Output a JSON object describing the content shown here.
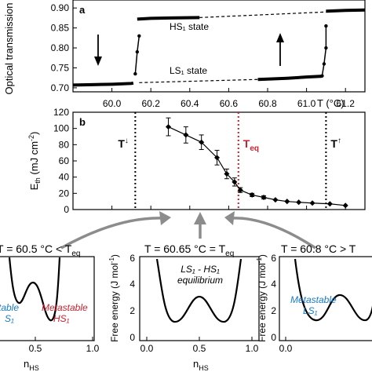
{
  "colors": {
    "black": "#000000",
    "red": "#cc1f2f",
    "blue": "#1a7bc4",
    "arrow": "#8c8c8c"
  },
  "chart_data": [
    {
      "panel": "a",
      "type": "line",
      "ylabel": "Optical transmission",
      "xlabel": "T (°C)",
      "xlim": [
        59.8,
        61.3
      ],
      "ylim": [
        0.69,
        0.92
      ],
      "x_ticks": [
        "60.0",
        "60.2",
        "60.4",
        "60.6",
        "60.8",
        "61.0",
        "61.2"
      ],
      "y_ticks": [
        "0.70",
        "0.75",
        "0.80",
        "0.85",
        "0.90"
      ],
      "annotations": [
        "HS₁ state",
        "LS₁ state"
      ],
      "series": [
        {
          "x": [
            59.8,
            59.9,
            60.0,
            60.1,
            60.11
          ],
          "y": [
            0.707,
            0.708,
            0.709,
            0.711,
            0.712
          ]
        },
        {
          "x": [
            60.12,
            60.13,
            60.14
          ],
          "y": [
            0.735,
            0.79,
            0.83
          ]
        },
        {
          "x": [
            60.13,
            60.2,
            60.3,
            60.45
          ],
          "y": [
            0.872,
            0.874,
            0.875,
            0.876
          ]
        },
        {
          "x": [
            60.75,
            60.9,
            61.0,
            61.08
          ],
          "y": [
            0.721,
            0.724,
            0.727,
            0.729
          ]
        },
        {
          "x": [
            61.08,
            61.09,
            61.1,
            61.1
          ],
          "y": [
            0.73,
            0.76,
            0.8,
            0.855
          ]
        },
        {
          "x": [
            61.1,
            61.15,
            61.2,
            61.3
          ],
          "y": [
            0.892,
            0.893,
            0.894,
            0.895
          ]
        }
      ],
      "dashed": [
        {
          "x": [
            60.45,
            61.1
          ],
          "y": [
            0.876,
            0.89
          ]
        },
        {
          "x": [
            60.14,
            60.75
          ],
          "y": [
            0.713,
            0.721
          ]
        }
      ]
    },
    {
      "panel": "b",
      "type": "scatter",
      "ylabel": "E",
      "ylabel_sub": "th",
      "ylabel_unit": "(mJ cm",
      "ylabel_sup": "-2",
      "ylabel_close": ")",
      "xlim": [
        59.8,
        61.3
      ],
      "ylim": [
        0,
        120
      ],
      "y_ticks": [
        "0",
        "20",
        "40",
        "60",
        "80",
        "100",
        "120"
      ],
      "x": [
        60.29,
        60.38,
        60.46,
        60.54,
        60.59,
        60.63,
        60.66,
        60.72,
        60.78,
        60.84,
        60.9,
        60.96,
        61.03,
        61.12,
        61.2
      ],
      "y": [
        102,
        92,
        83,
        64,
        44,
        34,
        24,
        18,
        15,
        12,
        10,
        9,
        8,
        7,
        5
      ],
      "errors": [
        11,
        10,
        9,
        9,
        6,
        5,
        3,
        2,
        2,
        1,
        1,
        1,
        1,
        1,
        1
      ],
      "vlines": [
        {
          "x": 60.12,
          "label": "T",
          "sup": "↓",
          "color": "black"
        },
        {
          "x": 60.65,
          "label": "T",
          "sub": "eq",
          "color": "red"
        },
        {
          "x": 61.1,
          "label": "T",
          "sup": "↑",
          "color": "black"
        }
      ]
    },
    {
      "panel": "c1",
      "type": "line",
      "title": "T = 60.5 °C < T",
      "title_sub": "eq",
      "xlabel": "n",
      "xlabel_sub": "HS",
      "x_ticks": [
        "0.5",
        "1.0"
      ],
      "labels": [
        {
          "text": "Metastable",
          "color": "red"
        },
        {
          "text": "HS₁",
          "color": "red"
        },
        {
          "text": "table",
          "color": "blue"
        },
        {
          "text": "S₁",
          "color": "blue"
        }
      ]
    },
    {
      "panel": "c2",
      "type": "line",
      "title": "T = 60.65 °C = T",
      "title_sub": "eq",
      "ylabel": "Free energy (J mol",
      "ylabel_sup": "-1",
      "ylabel_close": ")",
      "xlabel": "n",
      "xlabel_sub": "HS",
      "y_ticks": [
        "0",
        "2",
        "4",
        "6"
      ],
      "x_ticks": [
        "0.0",
        "0.5",
        "1.0"
      ],
      "inset_line1": "LS₁ - HS₁",
      "inset_line2": "equilibrium"
    },
    {
      "panel": "c3",
      "type": "line",
      "title": "T = 60.8 °C > T",
      "ylabel": "Free energy (J mol",
      "ylabel_sup": "-1",
      "ylabel_close": ")",
      "y_ticks": [
        "0",
        "2",
        "4",
        "6"
      ],
      "x_ticks": [
        "0.0"
      ],
      "labels": [
        {
          "text": "Metastable",
          "color": "blue"
        },
        {
          "text": "LS₁",
          "color": "blue"
        }
      ]
    }
  ]
}
